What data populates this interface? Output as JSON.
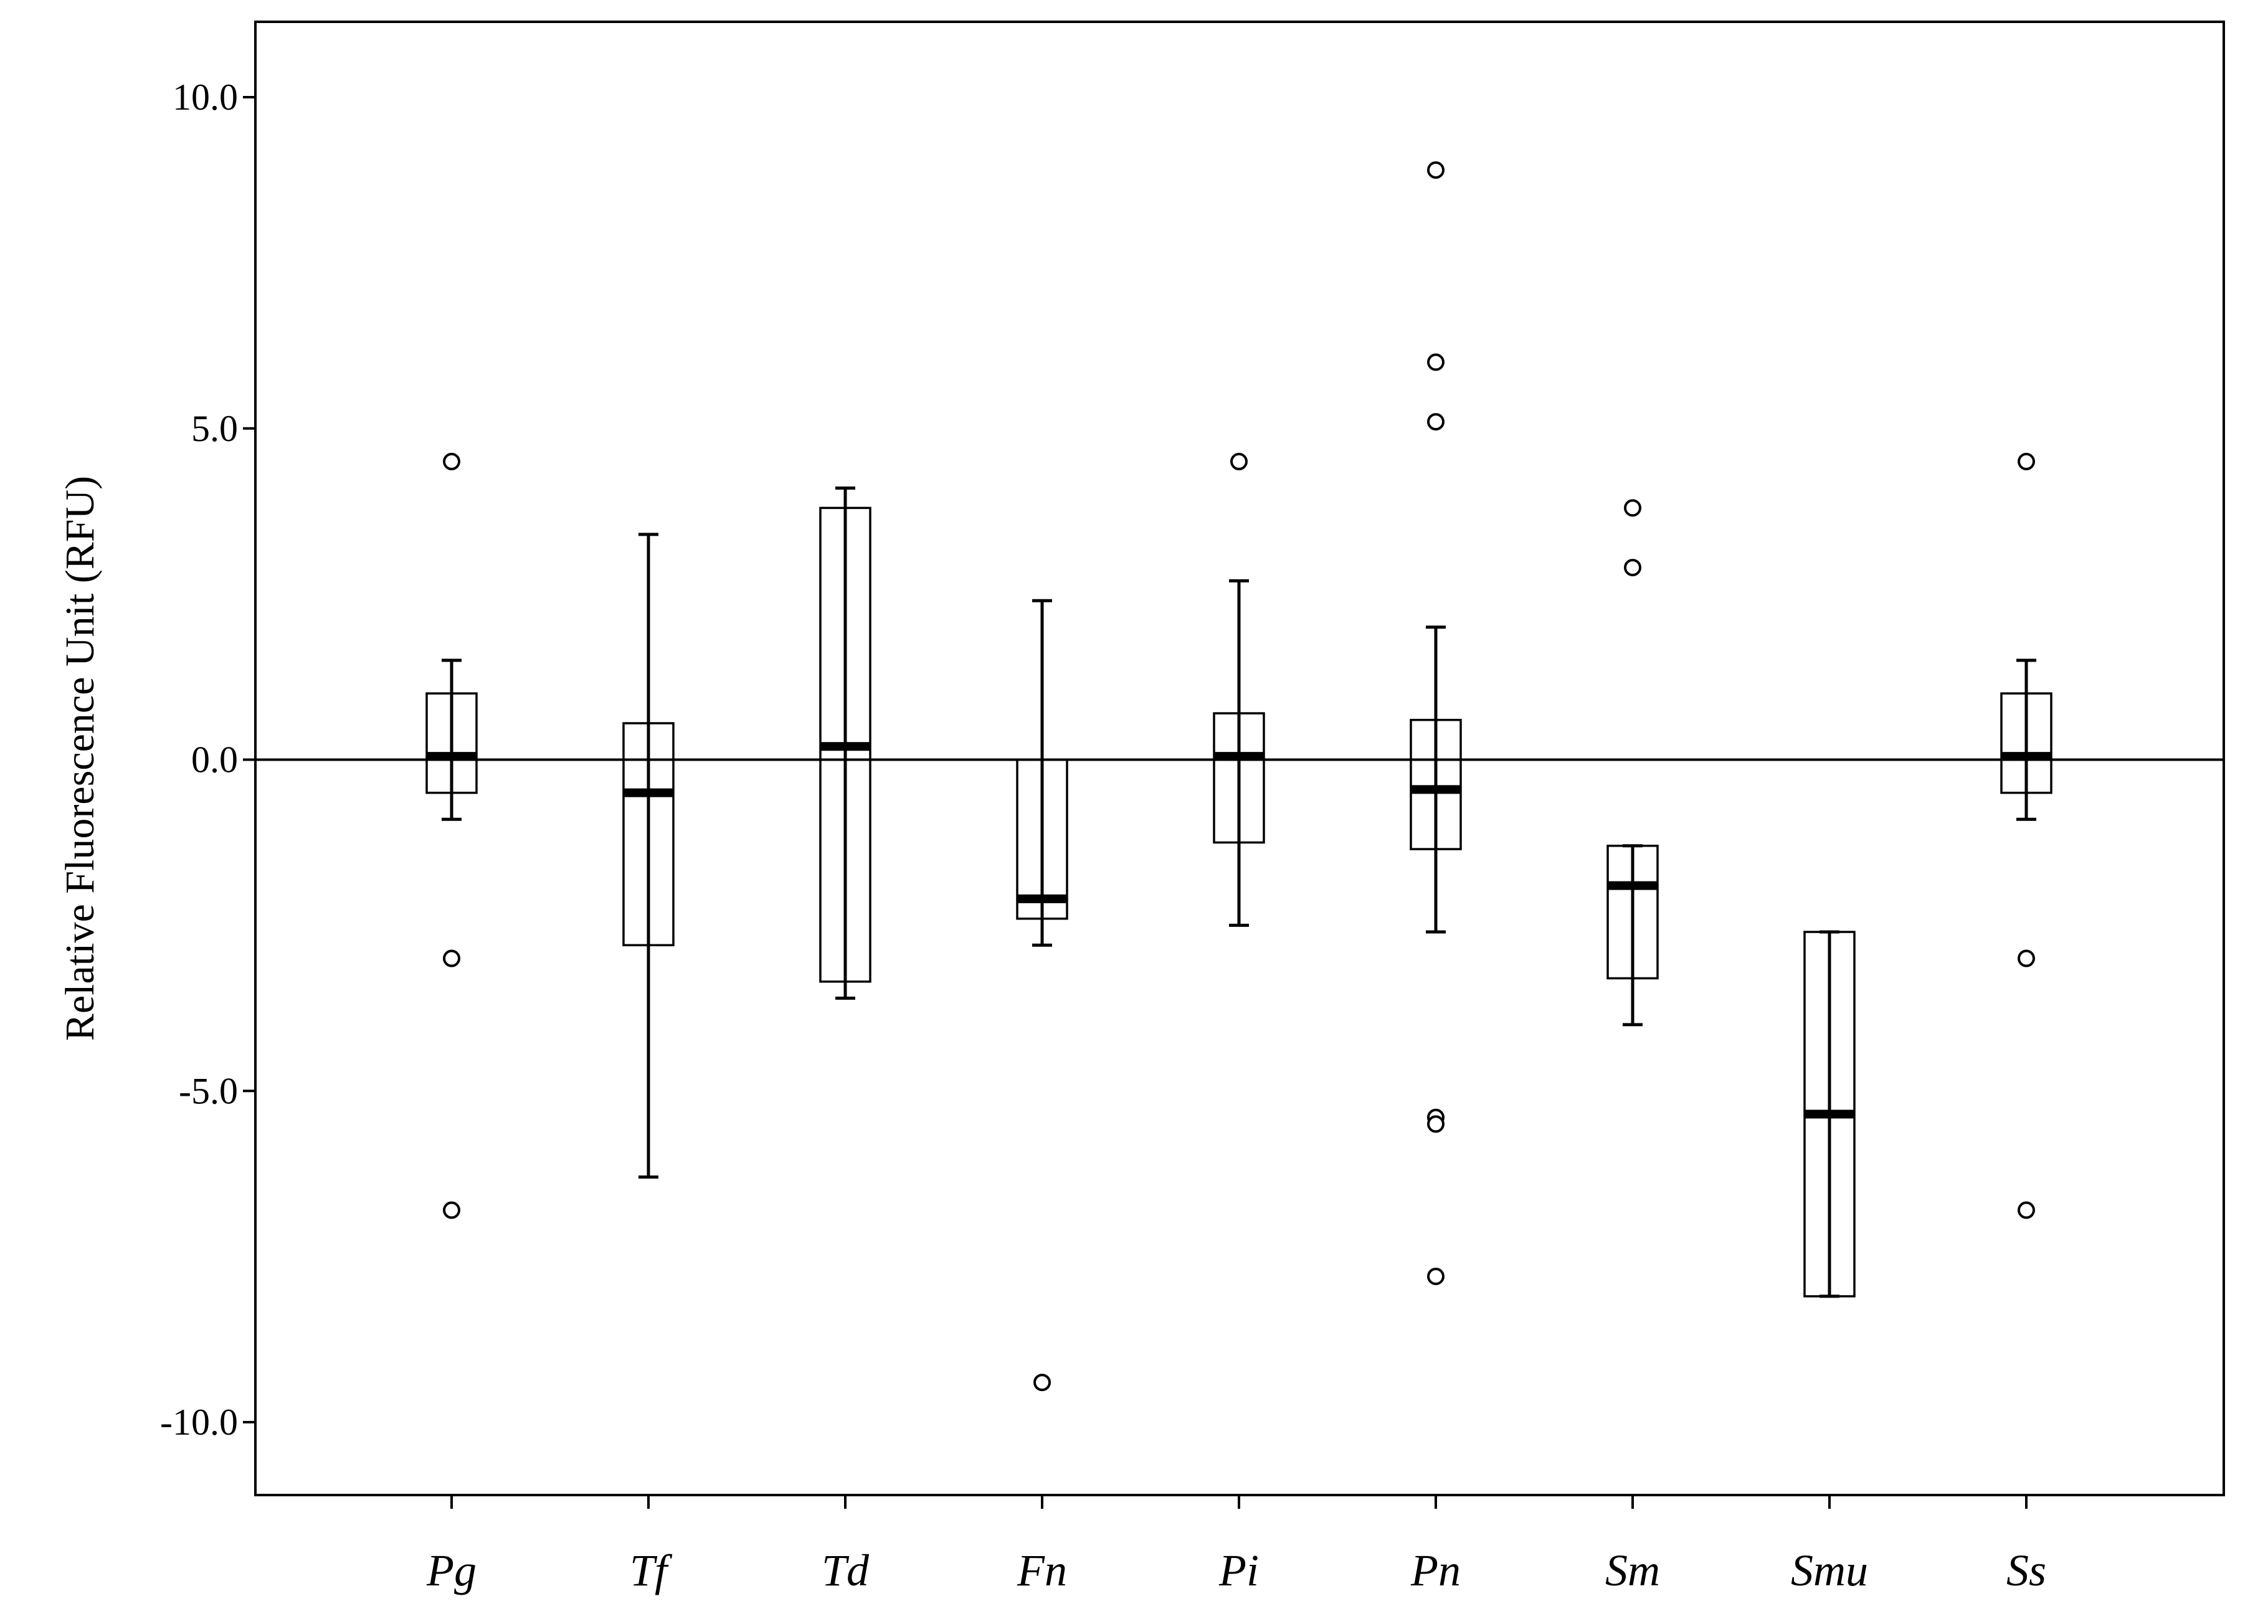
{
  "chart_data": {
    "type": "box",
    "title": "",
    "xlabel": "",
    "ylabel": "Relative Fluorescence Unit (RFU)",
    "ylim": [
      -11.1,
      11.1
    ],
    "yticks": [
      10.0,
      5.0,
      0.0,
      -5.0,
      -10.0
    ],
    "ytick_labels": [
      "10.0",
      "5.0",
      "0.0",
      "-5.0",
      "-10.0"
    ],
    "reference_line": 0,
    "grid": false,
    "categories": [
      "Pg",
      "Tf",
      "Td",
      "Fn",
      "Pi",
      "Pn",
      "Sm",
      "Smu",
      "Ss"
    ],
    "boxes": [
      {
        "category": "Pg",
        "whisker_low": -0.9,
        "q1": -0.5,
        "median": 0.05,
        "q3": 1.0,
        "whisker_high": 1.5,
        "outliers": [
          4.5,
          -3.0,
          -6.8
        ]
      },
      {
        "category": "Tf",
        "whisker_low": -6.3,
        "q1": -2.8,
        "median": -0.5,
        "q3": 0.55,
        "whisker_high": 3.4,
        "outliers": []
      },
      {
        "category": "Td",
        "whisker_low": -3.6,
        "q1": -3.35,
        "median": 0.2,
        "q3": 3.8,
        "whisker_high": 4.1,
        "outliers": []
      },
      {
        "category": "Fn",
        "whisker_low": -2.8,
        "q1": -2.4,
        "median": -2.1,
        "q3": 0.0,
        "whisker_high": 2.4,
        "outliers": [
          -9.4
        ]
      },
      {
        "category": "Pi",
        "whisker_low": -2.5,
        "q1": -1.25,
        "median": 0.05,
        "q3": 0.7,
        "whisker_high": 2.7,
        "outliers": [
          4.5
        ]
      },
      {
        "category": "Pn",
        "whisker_low": -2.6,
        "q1": -1.35,
        "median": -0.45,
        "q3": 0.6,
        "whisker_high": 2.0,
        "outliers": [
          8.9,
          6.0,
          5.1,
          -5.4,
          -5.5,
          -7.8
        ]
      },
      {
        "category": "Sm",
        "whisker_low": -4.0,
        "q1": -3.3,
        "median": -1.9,
        "q3": -1.3,
        "whisker_high": -1.3,
        "outliers": [
          3.8,
          2.9
        ]
      },
      {
        "category": "Smu",
        "whisker_low": -8.1,
        "q1": -8.1,
        "median": -5.35,
        "q3": -2.6,
        "whisker_high": -2.6,
        "outliers": []
      },
      {
        "category": "Ss",
        "whisker_low": -0.9,
        "q1": -0.5,
        "median": 0.05,
        "q3": 1.0,
        "whisker_high": 1.5,
        "outliers": [
          4.5,
          -3.0,
          -6.8
        ]
      }
    ]
  }
}
